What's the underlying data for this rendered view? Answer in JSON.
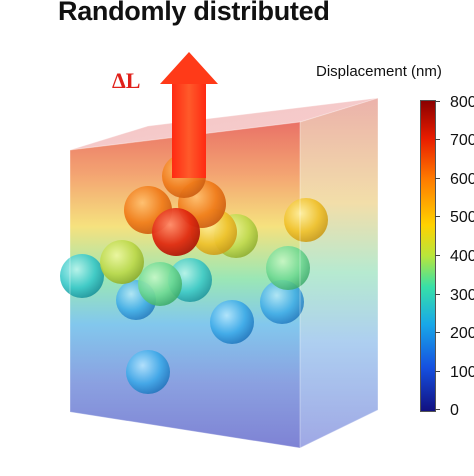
{
  "title": "Randomly distributed",
  "arrow_label": "ΔL",
  "colorbar": {
    "title": "Displacement (nm)",
    "ticks": [
      "800",
      "700",
      "600",
      "500",
      "400",
      "300",
      "200",
      "100",
      "0"
    ],
    "colors": [
      "#8b0000",
      "#e81c00",
      "#ff7a00",
      "#ffd200",
      "#b8e63c",
      "#37e0a8",
      "#18a8e8",
      "#1550e0",
      "#121080"
    ]
  },
  "colors": {
    "arrow": "#ff3b1a",
    "label": "#e0201a"
  }
}
